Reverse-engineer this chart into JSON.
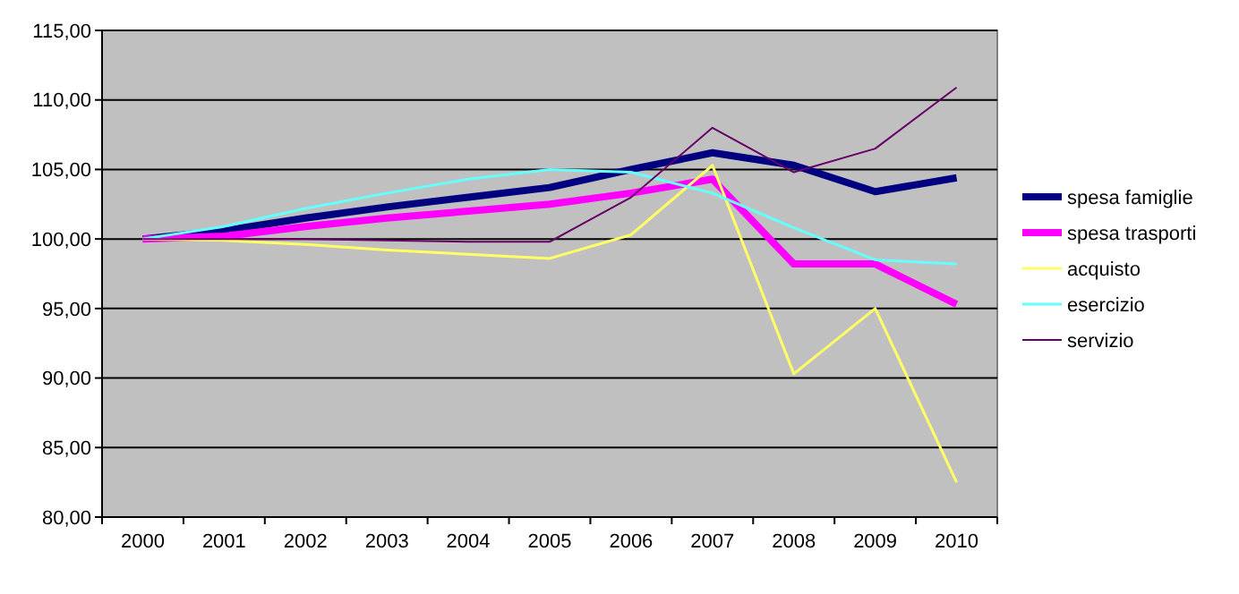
{
  "chart_data": {
    "type": "line",
    "categories": [
      "2000",
      "2001",
      "2002",
      "2003",
      "2004",
      "2005",
      "2006",
      "2007",
      "2008",
      "2009",
      "2010"
    ],
    "ylim": [
      80,
      115
    ],
    "yticks": [
      {
        "value": 80,
        "label": "80,00"
      },
      {
        "value": 85,
        "label": "85,00"
      },
      {
        "value": 90,
        "label": "90,00"
      },
      {
        "value": 95,
        "label": "95,00"
      },
      {
        "value": 100,
        "label": "100,00"
      },
      {
        "value": 105,
        "label": "105,00"
      },
      {
        "value": 110,
        "label": "110,00"
      },
      {
        "value": 115,
        "label": "115,00"
      }
    ],
    "grid": "y",
    "legend": "right",
    "marker": "none",
    "series": [
      {
        "name": "spesa famiglie",
        "color": "#000080",
        "values": [
          100,
          100.6,
          101.5,
          102.3,
          103,
          103.7,
          105,
          106.2,
          105.3,
          103.4,
          104.4
        ]
      },
      {
        "name": "spesa trasporti",
        "color": "#ff00ff",
        "values": [
          100,
          100.2,
          100.9,
          101.5,
          102,
          102.5,
          103.3,
          104.3,
          98.2,
          98.2,
          95.3
        ]
      },
      {
        "name": "acquisto",
        "color": "#ffff66",
        "values": [
          100,
          99.9,
          99.6,
          99.2,
          98.9,
          98.6,
          100.3,
          105.3,
          90.3,
          95,
          82.5
        ]
      },
      {
        "name": "esercizio",
        "color": "#66ffff",
        "values": [
          100,
          100.9,
          102.2,
          103.3,
          104.3,
          105,
          104.8,
          103.3,
          100.8,
          98.5,
          98.2
        ]
      },
      {
        "name": "servizio",
        "color": "#660066",
        "values": [
          100,
          100,
          100,
          99.9,
          99.8,
          99.8,
          103,
          108,
          104.8,
          106.5,
          110.9
        ]
      }
    ]
  }
}
